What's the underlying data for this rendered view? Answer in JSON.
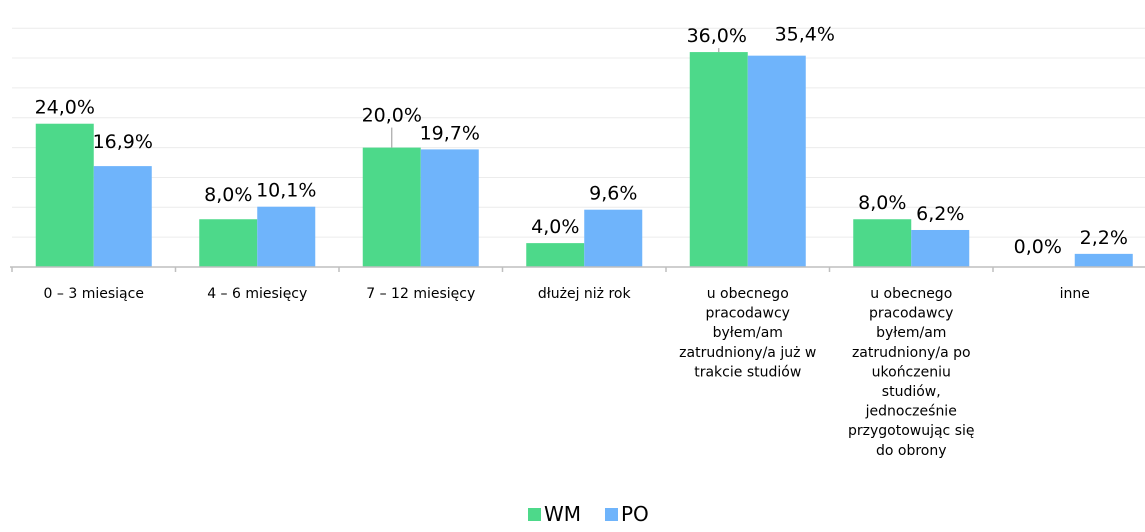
{
  "chart_data": {
    "type": "bar",
    "categories": [
      [
        "0 – 3 miesiące"
      ],
      [
        "4 – 6 miesięcy"
      ],
      [
        "7 – 12 miesięcy"
      ],
      [
        "dłużej niż rok"
      ],
      [
        "u obecnego",
        "pracodawcy",
        "byłem/am",
        "zatrudniony/a już w",
        "trakcie studiów"
      ],
      [
        "u obecnego",
        "pracodawcy",
        "byłem/am",
        "zatrudniony/a po",
        "ukończeniu",
        "studiów,",
        "jednocześnie",
        "przygotowując się",
        "do obrony"
      ],
      [
        "inne"
      ]
    ],
    "series": [
      {
        "name": "WM",
        "color": "#4dd98a",
        "values": [
          24.0,
          8.0,
          20.0,
          4.0,
          36.0,
          8.0,
          0.0
        ],
        "labels": [
          "24,0%",
          "8,0%",
          "20,0%",
          "4,0%",
          "36,0%",
          "8,0%",
          "0,0%"
        ]
      },
      {
        "name": "PO",
        "color": "#6fb4fb",
        "values": [
          16.9,
          10.1,
          19.7,
          9.6,
          35.4,
          6.2,
          2.2
        ],
        "labels": [
          "16,9%",
          "10,1%",
          "19,7%",
          "9,6%",
          "35,4%",
          "6,2%",
          "2,2%"
        ]
      }
    ],
    "ylim": [
      0,
      40
    ],
    "grid": true,
    "legend": "bottom",
    "title": "",
    "xlabel": "",
    "ylabel": ""
  }
}
